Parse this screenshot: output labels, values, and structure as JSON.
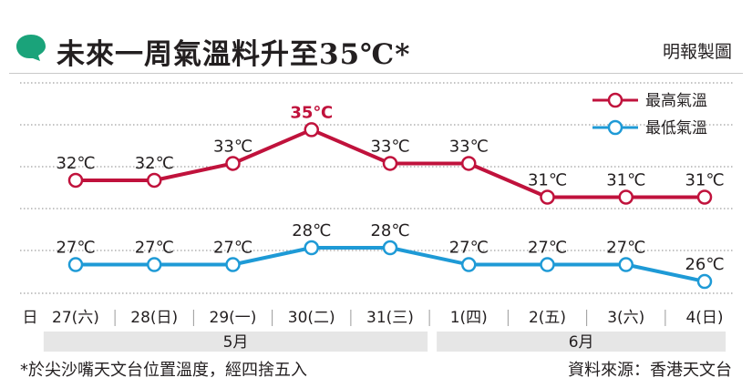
{
  "title": "未來一周氣溫料升至35℃*",
  "credit": "明報製圖",
  "footnote": "*於尖沙嘴天文台位置溫度，經四捨五入",
  "source": "資料來源：香港天文台",
  "colors": {
    "high": "#c0123c",
    "low": "#1e9ad6",
    "badge": "#1aa37a",
    "month_band": "#e6e6e6",
    "grid": "#888888"
  },
  "chart_data": {
    "type": "line",
    "day_axis_label": "日",
    "categories": [
      "27(六)",
      "28(日)",
      "29(一)",
      "30(二)",
      "31(三)",
      "1(四)",
      "2(五)",
      "3(六)",
      "4(日)"
    ],
    "months": [
      {
        "label": "5月",
        "span": [
          0,
          4
        ]
      },
      {
        "label": "6月",
        "span": [
          5,
          8
        ]
      }
    ],
    "unit": "℃",
    "series": [
      {
        "name": "最高氣溫",
        "key": "high",
        "values": [
          32,
          32,
          33,
          35,
          33,
          33,
          31,
          31,
          31
        ],
        "labels": [
          "32℃",
          "32℃",
          "33℃",
          "35℃",
          "33℃",
          "33℃",
          "31℃",
          "31℃",
          "31℃"
        ],
        "highlight_index": 3
      },
      {
        "name": "最低氣溫",
        "key": "low",
        "values": [
          27,
          27,
          27,
          28,
          28,
          27,
          27,
          27,
          26
        ],
        "labels": [
          "27℃",
          "27℃",
          "27℃",
          "28℃",
          "28℃",
          "27℃",
          "27℃",
          "27℃",
          "26℃"
        ]
      }
    ],
    "ylim": [
      25.3,
      37.4
    ],
    "grid": true,
    "legend": "top-right"
  }
}
